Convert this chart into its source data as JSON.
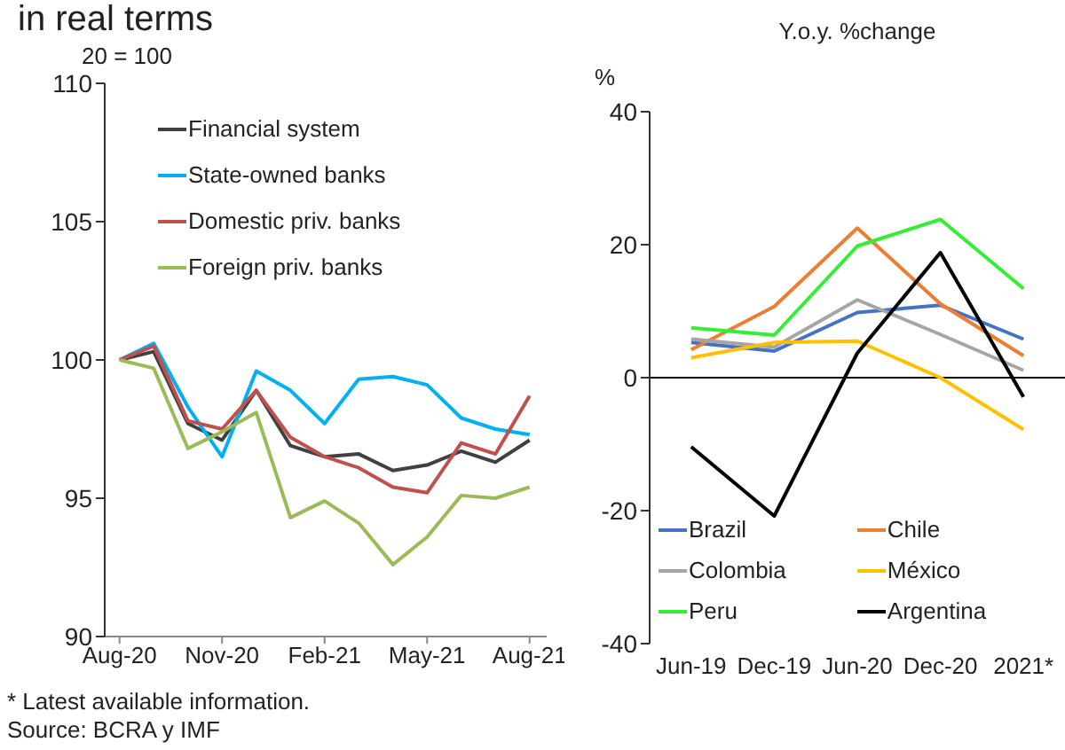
{
  "chart_data": [
    {
      "type": "line",
      "title": "in real terms",
      "ylabel": "20 = 100",
      "x": [
        "2020-08",
        "2020-09",
        "2020-10",
        "2020-11",
        "2020-12",
        "2021-01",
        "2021-02",
        "2021-03",
        "2021-04",
        "2021-05",
        "2021-06",
        "2021-07",
        "2021-08"
      ],
      "series": [
        {
          "name": "Financial system",
          "color": "#404040",
          "values": [
            100,
            100.3,
            97.7,
            97.1,
            98.9,
            96.9,
            96.5,
            96.6,
            96.0,
            96.2,
            96.7,
            96.3,
            97.1
          ]
        },
        {
          "name": "State-owned banks",
          "color": "#00b0f0",
          "values": [
            100,
            100.6,
            98.3,
            96.5,
            99.6,
            98.9,
            97.7,
            99.3,
            99.4,
            99.1,
            97.9,
            97.5,
            97.3
          ]
        },
        {
          "name": "Domestic priv. banks",
          "color": "#c0504d",
          "values": [
            100,
            100.5,
            97.8,
            97.5,
            98.9,
            97.2,
            96.5,
            96.1,
            95.4,
            95.2,
            97.0,
            96.6,
            98.7
          ]
        },
        {
          "name": "Foreign priv. banks",
          "color": "#9bbb59",
          "values": [
            100,
            99.7,
            96.8,
            97.4,
            98.1,
            94.3,
            94.9,
            94.1,
            92.6,
            93.6,
            95.1,
            95.0,
            95.4
          ]
        }
      ],
      "xlim": [
        "2020-07-18",
        "2021-08-16"
      ],
      "xticks": [
        {
          "value": "2020-08",
          "label": "Aug-20"
        },
        {
          "value": "2020-11",
          "label": "Nov-20"
        },
        {
          "value": "2021-02",
          "label": "Feb-21"
        },
        {
          "value": "2021-05",
          "label": "May-21"
        },
        {
          "value": "2021-08",
          "label": "Aug-21"
        }
      ],
      "ylim": [
        90,
        110
      ],
      "yticks": [
        90,
        95,
        100,
        105,
        110
      ],
      "legend": "top left",
      "marker": "none",
      "line_style": "solid",
      "annotations": [
        "* Latest available information.",
        "Source: BCRA y IMF"
      ]
    },
    {
      "type": "line",
      "title": "Y.o.y. %change",
      "ylabel": "%",
      "categories": [
        "Jun-19",
        "Dec-19",
        "Jun-20",
        "Dec-20",
        "2021*"
      ],
      "series": [
        {
          "name": "Brazil",
          "color": "#4472c4",
          "values": [
            5.3,
            4.0,
            9.8,
            10.9,
            5.8
          ]
        },
        {
          "name": "Chile",
          "color": "#ed7d31",
          "values": [
            4.2,
            10.7,
            22.5,
            11.1,
            3.3
          ]
        },
        {
          "name": "Colombia",
          "color": "#a5a5a5",
          "values": [
            5.8,
            4.6,
            11.7,
            6.5,
            1.1
          ]
        },
        {
          "name": "México",
          "color": "#ffc000",
          "values": [
            3.0,
            5.3,
            5.5,
            0.0,
            -7.8
          ]
        },
        {
          "name": "Peru",
          "color": "#33ee33",
          "values": [
            7.5,
            6.4,
            19.8,
            23.8,
            13.4
          ]
        },
        {
          "name": "Argentina",
          "color": "#000000",
          "values": [
            -10.4,
            -20.8,
            3.7,
            18.8,
            -2.9
          ]
        }
      ],
      "ylim": [
        -40,
        40
      ],
      "yticks": [
        -40,
        -20,
        0,
        20,
        40
      ],
      "legend": "bottom left",
      "marker": "none",
      "line_style": "solid"
    }
  ]
}
